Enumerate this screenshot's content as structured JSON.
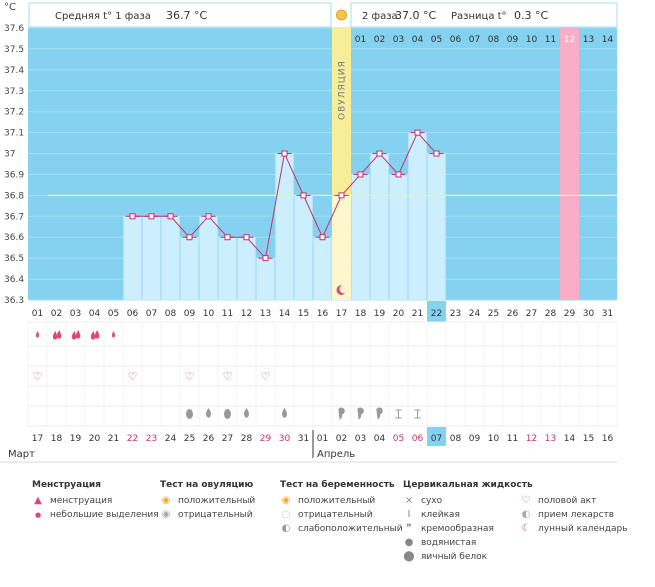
{
  "chart_data": {
    "type": "line",
    "title": "Basal body temperature chart",
    "y_unit": "°C",
    "ylim": [
      36.3,
      37.6
    ],
    "y_ticks": [
      "37.6",
      "37.5",
      "37.4",
      "37.3",
      "37.2",
      "37.1",
      "37",
      "36.9",
      "36.8",
      "36.7",
      "36.6",
      "36.5",
      "36.4",
      "36.3"
    ],
    "cycle_days": [
      "01",
      "02",
      "03",
      "04",
      "05",
      "06",
      "07",
      "08",
      "09",
      "10",
      "11",
      "12",
      "13",
      "14",
      "15",
      "16",
      "17",
      "18",
      "19",
      "20",
      "21",
      "22",
      "23",
      "24",
      "25",
      "26",
      "27",
      "28",
      "29",
      "30",
      "31"
    ],
    "top_phase2_days": [
      "01",
      "02",
      "03",
      "04",
      "05",
      "06",
      "07",
      "08",
      "09",
      "10",
      "11",
      "12",
      "13",
      "14"
    ],
    "dates": [
      "17",
      "18",
      "19",
      "20",
      "21",
      "22",
      "23",
      "24",
      "25",
      "26",
      "27",
      "28",
      "29",
      "30",
      "31",
      "01",
      "02",
      "03",
      "04",
      "05",
      "06",
      "07",
      "08",
      "09",
      "10",
      "11",
      "12",
      "13",
      "14",
      "15",
      "16"
    ],
    "date_red": [
      5,
      6,
      12,
      13,
      19,
      20,
      26,
      27
    ],
    "months": [
      "Март",
      "Апрель"
    ],
    "temperatures": [
      null,
      null,
      null,
      null,
      null,
      36.7,
      36.7,
      36.7,
      36.6,
      36.7,
      36.6,
      36.6,
      36.5,
      37.0,
      36.8,
      36.6,
      36.8,
      36.9,
      37.0,
      36.9,
      37.1,
      37.0,
      null,
      null,
      null,
      null,
      null,
      null,
      null,
      null,
      null
    ],
    "coverline": 36.8,
    "ovulation_day_index": 16,
    "ovulation_label": "ОВУЛЯЦИЯ",
    "today_index": 21,
    "pink_day_index": 28,
    "menstruation": [
      {
        "day": 0,
        "kind": "small"
      },
      {
        "day": 1,
        "kind": "heavy"
      },
      {
        "day": 2,
        "kind": "heavy"
      },
      {
        "day": 3,
        "kind": "heavy"
      },
      {
        "day": 4,
        "kind": "small"
      }
    ],
    "intercourse_days": [
      0,
      5,
      8,
      10,
      12
    ],
    "fluid": [
      {
        "day": 8,
        "kind": "egg"
      },
      {
        "day": 9,
        "kind": "watery"
      },
      {
        "day": 10,
        "kind": "egg"
      },
      {
        "day": 11,
        "kind": "watery"
      },
      {
        "day": 13,
        "kind": "watery"
      },
      {
        "day": 16,
        "kind": "creamy"
      },
      {
        "day": 17,
        "kind": "creamy"
      },
      {
        "day": 18,
        "kind": "creamy"
      },
      {
        "day": 19,
        "kind": "sticky"
      },
      {
        "day": 20,
        "kind": "sticky"
      }
    ],
    "ov_test_day": 16,
    "moon_day": 16
  },
  "header": {
    "phase1_label": "Средняя t° 1 фаза",
    "phase1_value": "36.7 °C",
    "phase2_label": "2 фаза",
    "phase2_value": "37.0 °C",
    "diff_label": "Разница t°",
    "diff_value": "0.3 °C"
  },
  "legend": {
    "menstruation": {
      "title": "Менструация",
      "items": [
        "менструация",
        "небольшие выделения"
      ]
    },
    "ovulation_test": {
      "title": "Тест на овуляцию",
      "items": [
        "положительный",
        "отрицательный"
      ]
    },
    "pregnancy_test": {
      "title": "Тест на беременность",
      "items": [
        "положительный",
        "отрицательный",
        "слабоположительный"
      ]
    },
    "cervical_fluid": {
      "title": "Цервикальная жидкость",
      "items": [
        "сухо",
        "клейкая",
        "кремообразная",
        "водянистая",
        "яичный белок"
      ]
    },
    "other": {
      "items": [
        "половой акт",
        "прием лекарств",
        "лунный календарь"
      ]
    }
  }
}
